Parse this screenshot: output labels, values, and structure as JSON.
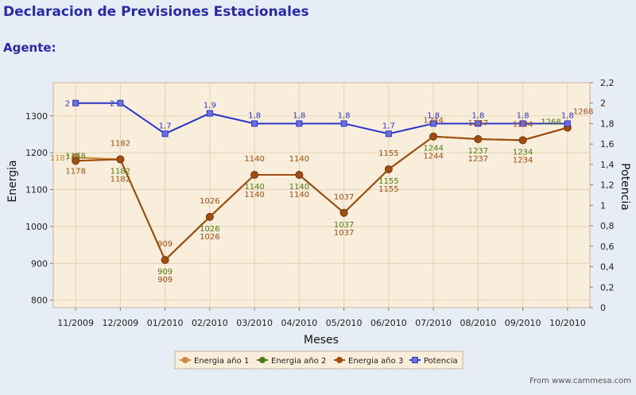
{
  "page": {
    "title": "Declaracion de Previsiones Estacionales",
    "agent_label": "Agente:",
    "footer": "From www.cammesa.com"
  },
  "chart_data": {
    "type": "line",
    "title": "",
    "xlabel": "Meses",
    "ylabel": "Energia",
    "y2label": "Potencia",
    "categories": [
      "11/2009",
      "12/2009",
      "01/2010",
      "02/2010",
      "03/2010",
      "04/2010",
      "05/2010",
      "06/2010",
      "07/2010",
      "08/2010",
      "09/2010",
      "10/2010"
    ],
    "ylim": [
      780,
      1390
    ],
    "yticks": [
      800,
      900,
      1000,
      1100,
      1200,
      1300
    ],
    "y2lim": [
      0,
      2.2
    ],
    "y2ticks": [
      "0",
      "0,2",
      "0,4",
      "0,6",
      "0,8",
      "1",
      "1,2",
      "1,4",
      "1,6",
      "1,8",
      "2",
      "2,2"
    ],
    "grid": true,
    "legend_position": "bottom",
    "series": [
      {
        "name": "Energia año 1",
        "axis": "left",
        "color": "#c8893a",
        "marker": "circle",
        "values": [
          1187,
          1182,
          909,
          1026,
          1140,
          1140,
          1037,
          1155,
          1244,
          1237,
          1234,
          1268
        ],
        "labels": [
          "1187",
          "",
          "",
          "",
          "",
          "",
          "",
          "",
          "",
          "",
          "",
          ""
        ]
      },
      {
        "name": "Energia año 2",
        "axis": "left",
        "color": "#4f7a12",
        "marker": "circle",
        "values": [
          1178,
          1182,
          909,
          1026,
          1140,
          1140,
          1037,
          1155,
          1244,
          1237,
          1234,
          1268
        ],
        "labels": [
          "1178",
          "1182",
          "909",
          "1026",
          "1140",
          "1140",
          "1037",
          "1155",
          "1244",
          "1237",
          "1234",
          "1268"
        ]
      },
      {
        "name": "Energia año 3",
        "axis": "left",
        "color": "#a14d12",
        "marker": "circle",
        "values": [
          1178,
          1182,
          909,
          1026,
          1140,
          1140,
          1037,
          1155,
          1244,
          1237,
          1234,
          1268
        ],
        "labels": [
          "1178",
          "1182",
          "909",
          "1026",
          "1140",
          "1140",
          "1037",
          "1155",
          "1244",
          "1237",
          "1234",
          "1268"
        ]
      },
      {
        "name": "Potencia",
        "axis": "right",
        "color": "#2b35c8",
        "marker": "square",
        "values": [
          2,
          2,
          1.7,
          1.9,
          1.8,
          1.8,
          1.8,
          1.7,
          1.8,
          1.8,
          1.8,
          1.8
        ],
        "labels": [
          "2",
          "2",
          "1,7",
          "1,9",
          "1,8",
          "1,8",
          "1,8",
          "1,7",
          "1,8",
          "1,8",
          "1,8",
          "1,8"
        ]
      }
    ]
  }
}
